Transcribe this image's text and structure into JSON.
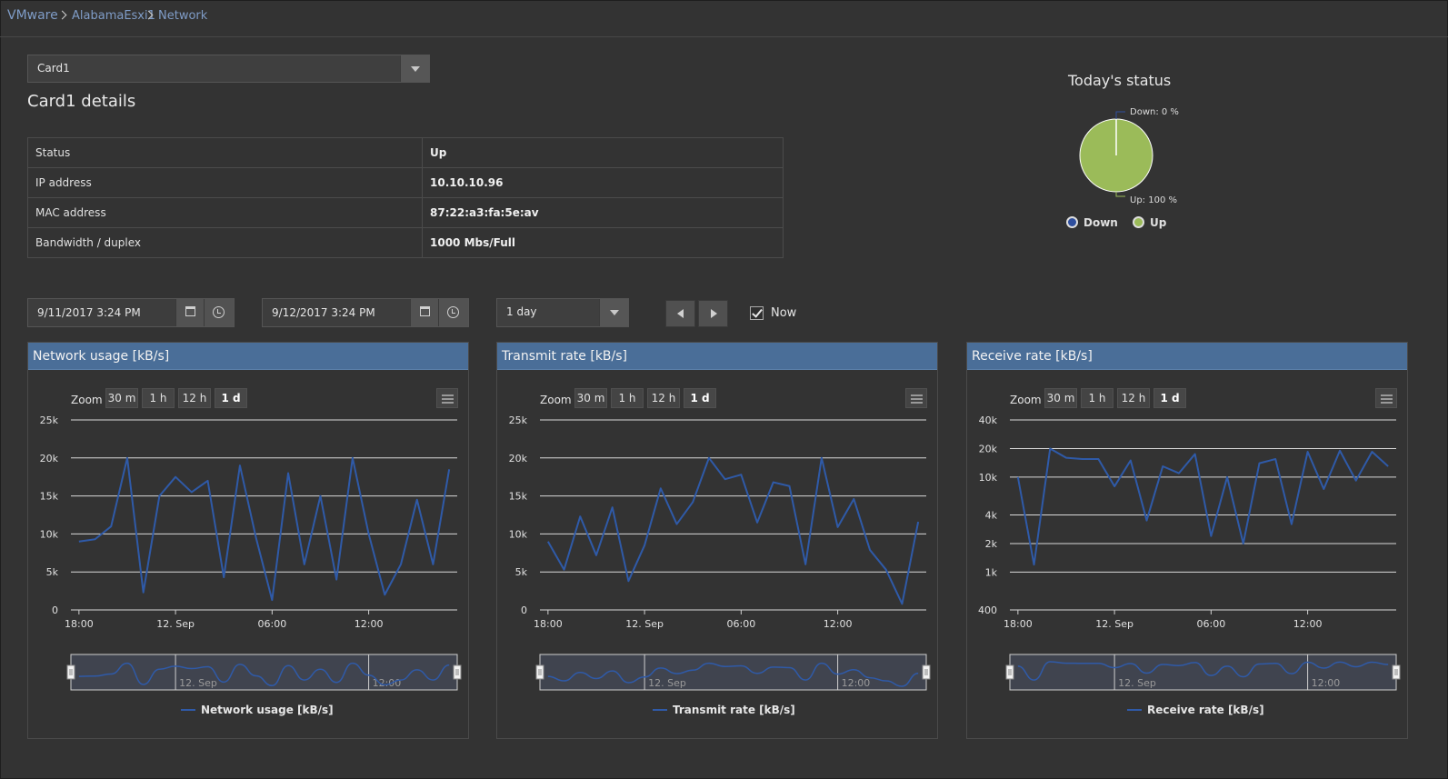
{
  "breadcrumb": [
    "VMware",
    "AlabamaEsxi1",
    "Network"
  ],
  "card_select": {
    "value": "Card1"
  },
  "card_title": "Card1 details",
  "details": [
    {
      "key": "Status",
      "value": "Up"
    },
    {
      "key": "IP address",
      "value": "10.10.10.96"
    },
    {
      "key": "MAC address",
      "value": "87:22:a3:fa:5e:av"
    },
    {
      "key": "Bandwidth / duplex",
      "value": "1000 Mbs/Full"
    }
  ],
  "status": {
    "title": "Today's status",
    "down_label": "Down: 0 %",
    "up_label": "Up: 100 %",
    "legend": [
      "Down",
      "Up"
    ],
    "colors": {
      "down": "#2f4f9e",
      "up": "#9bbb59"
    },
    "chart_data": {
      "type": "pie",
      "categories": [
        "Down",
        "Up"
      ],
      "values": [
        0,
        100
      ]
    }
  },
  "controls": {
    "from": "9/11/2017 3:24 PM",
    "to": "9/12/2017 3:24 PM",
    "period": "1 day",
    "now_label": "Now",
    "now_checked": true
  },
  "zoom": {
    "label": "Zoom",
    "options": [
      "30 m",
      "1 h",
      "12 h",
      "1 d"
    ],
    "active": "1 d"
  },
  "time_ticks": [
    "18:00",
    "12. Sep",
    "06:00",
    "12:00"
  ],
  "navigator_ticks": [
    "12. Sep",
    "12:00"
  ],
  "series_color": "#2f5aa8",
  "charts": [
    {
      "id": "network",
      "title": "Network usage [kB/s]",
      "legend": "Network usage [kB/s]",
      "chart_data": {
        "type": "line",
        "y_axis": {
          "min": 0,
          "max": 25000,
          "scale": "linear",
          "ticks": [
            0,
            5000,
            10000,
            15000,
            20000,
            25000
          ],
          "tick_labels": [
            "0",
            "5k",
            "10k",
            "15k",
            "20k",
            "25k"
          ]
        },
        "x_range": [
          -6.5,
          17.5
        ],
        "x_unit": "hours relative to 12. Sep 00:00",
        "values": [
          9000,
          9300,
          11000,
          20000,
          2300,
          15000,
          17500,
          15500,
          17000,
          4300,
          19000,
          9500,
          1300,
          18000,
          6000,
          15000,
          4000,
          20000,
          10000,
          2000,
          6000,
          14500,
          6000,
          18500
        ]
      }
    },
    {
      "id": "transmit",
      "title": "Transmit rate [kB/s]",
      "legend": "Transmit rate [kB/s]",
      "chart_data": {
        "type": "line",
        "y_axis": {
          "min": 0,
          "max": 25000,
          "scale": "linear",
          "ticks": [
            0,
            5000,
            10000,
            15000,
            20000,
            25000
          ],
          "tick_labels": [
            "0",
            "5k",
            "10k",
            "15k",
            "20k",
            "25k"
          ]
        },
        "x_range": [
          -6.5,
          17.5
        ],
        "x_unit": "hours relative to 12. Sep 00:00",
        "values": [
          9000,
          5300,
          12300,
          7200,
          13500,
          3800,
          8500,
          16000,
          11300,
          14200,
          20000,
          17200,
          17800,
          11500,
          16800,
          16300,
          6000,
          20000,
          10900,
          14600,
          7900,
          5300,
          800,
          11600
        ]
      }
    },
    {
      "id": "receive",
      "title": "Receive rate [kB/s]",
      "legend": "Receive rate [kB/s]",
      "chart_data": {
        "type": "line",
        "y_axis": {
          "min": 400,
          "max": 40000,
          "scale": "log",
          "ticks": [
            400,
            1000,
            2000,
            4000,
            10000,
            20000,
            40000
          ],
          "tick_labels": [
            "400",
            "1k",
            "2k",
            "4k",
            "10k",
            "20k",
            "40k"
          ]
        },
        "x_range": [
          -6.5,
          17.5
        ],
        "x_unit": "hours relative to 12. Sep 00:00",
        "values": [
          10000,
          1200,
          20000,
          16000,
          15500,
          15500,
          8000,
          15000,
          3500,
          13000,
          11000,
          17500,
          2400,
          10000,
          2000,
          14000,
          15500,
          3200,
          18500,
          7500,
          19000,
          9200,
          18500,
          13000
        ]
      }
    }
  ]
}
